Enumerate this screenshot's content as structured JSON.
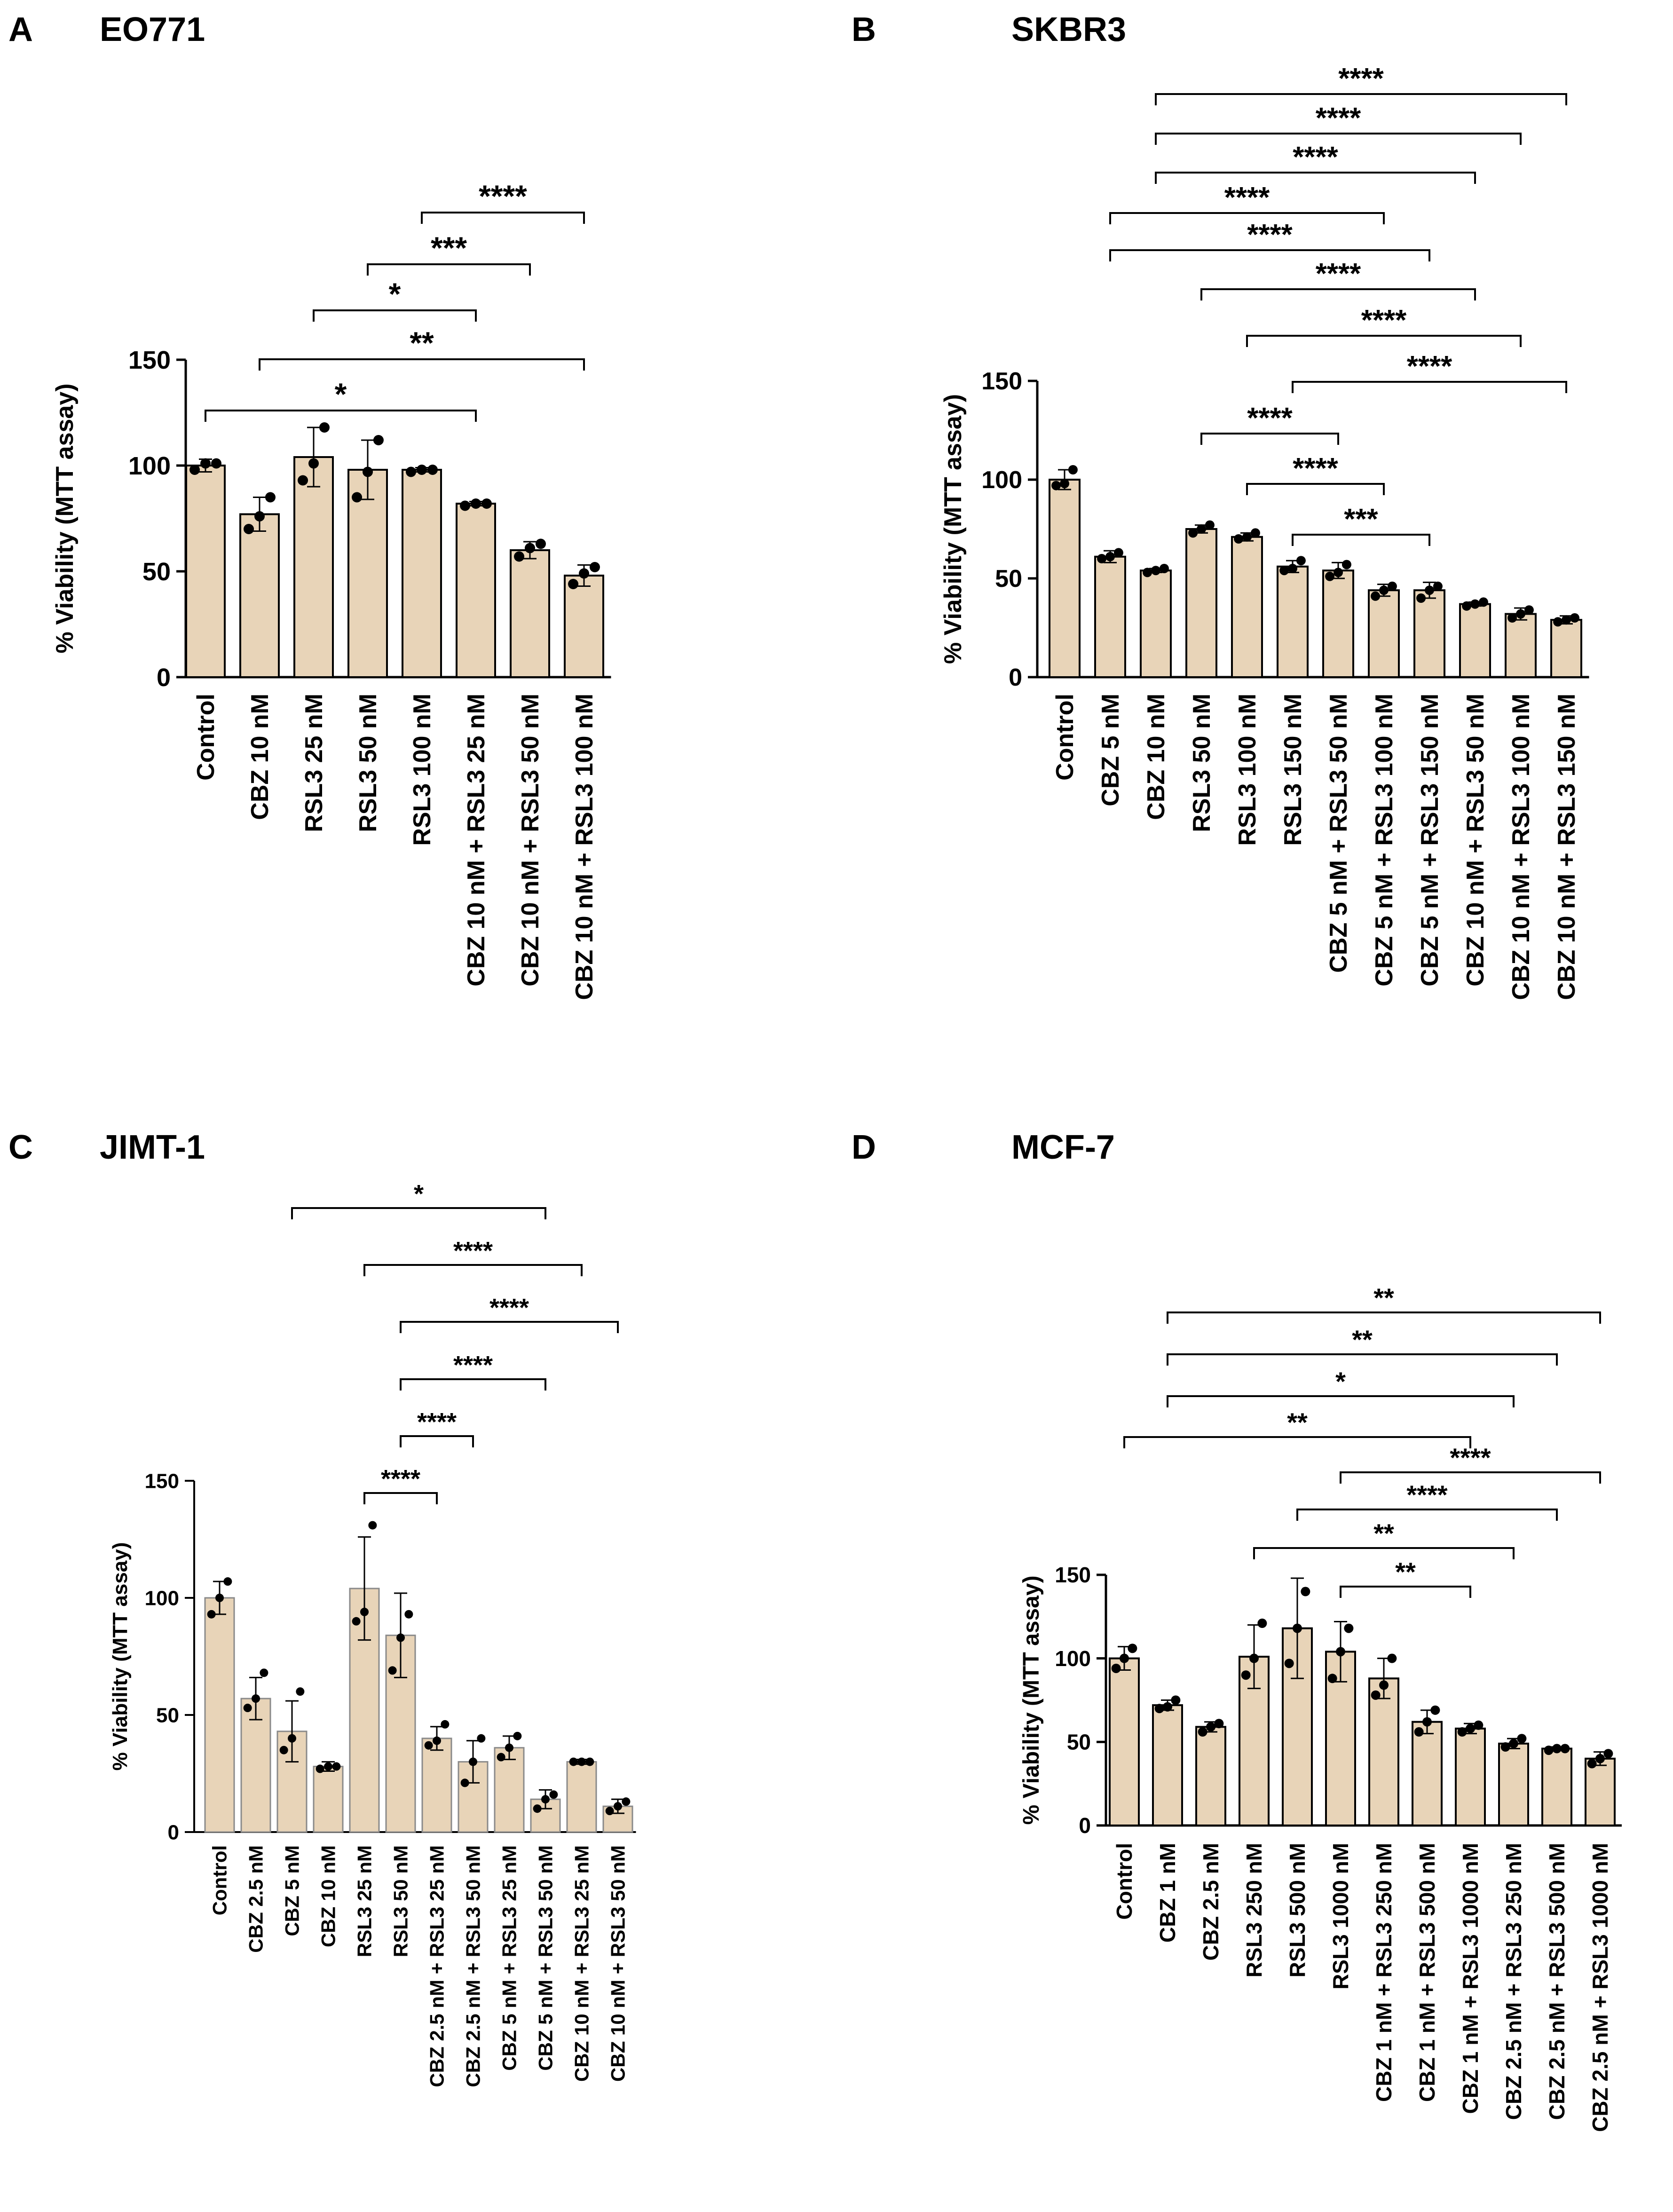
{
  "colors": {
    "bar": "#e8d4b8",
    "bar_outline": "#000000",
    "bar_outline_c": "#8a8a8a",
    "dot": "#000000"
  },
  "chart_data": [
    {
      "id": "A",
      "panel_label": "A",
      "title": "EO771",
      "type": "bar",
      "ylabel": "% Viability (MTT assay)",
      "ylim": [
        0,
        150
      ],
      "yticks": [
        0,
        50,
        100,
        150
      ],
      "categories": [
        "Control",
        "CBZ 10 nM",
        "RSL3 25 nM",
        "RSL3 50 nM",
        "RSL3 100 nM",
        "CBZ 10 nM + RSL3 25 nM",
        "CBZ 10 nM + RSL3 50 nM",
        "CBZ 10 nM + RSL3 100 nM"
      ],
      "values": [
        100,
        77,
        104,
        98,
        98,
        82,
        60,
        48
      ],
      "errors": [
        3,
        8,
        14,
        14,
        1,
        1,
        4,
        5
      ],
      "points": [
        [
          98,
          101,
          101
        ],
        [
          70,
          76,
          85
        ],
        [
          93,
          101,
          118
        ],
        [
          85,
          97,
          112
        ],
        [
          97,
          98,
          98
        ],
        [
          81,
          82,
          82
        ],
        [
          57,
          61,
          63
        ],
        [
          44,
          49,
          52
        ]
      ],
      "comparisons": [
        {
          "a": 0,
          "b": 5,
          "label": "*"
        },
        {
          "a": 1,
          "b": 7,
          "label": "**"
        },
        {
          "a": 2,
          "b": 5,
          "label": "*"
        },
        {
          "a": 3,
          "b": 6,
          "label": "***"
        },
        {
          "a": 4,
          "b": 7,
          "label": "****"
        }
      ]
    },
    {
      "id": "B",
      "panel_label": "B",
      "title": "SKBR3",
      "type": "bar",
      "ylabel": "% Viability (MTT assay)",
      "ylim": [
        0,
        150
      ],
      "yticks": [
        0,
        50,
        100,
        150
      ],
      "categories": [
        "Control",
        "CBZ 5 nM",
        "CBZ 10 nM",
        "RSL3 50 nM",
        "RSL3 100 nM",
        "RSL3 150 nM",
        "CBZ 5 nM + RSL3 50 nM",
        "CBZ 5 nM + RSL3 100 nM",
        "CBZ 5 nM + RSL3 150 nM",
        "CBZ 10 nM + RSL3 50 nM",
        "CBZ 10 nM + RSL3 100 nM",
        "CBZ 10 nM + RSL3 150 nM"
      ],
      "values": [
        100,
        61,
        54,
        75,
        71,
        56,
        54,
        44,
        44,
        37,
        32,
        29
      ],
      "errors": [
        5,
        3,
        1,
        2,
        2,
        3,
        4,
        3,
        4,
        1,
        3,
        2
      ],
      "points": [
        [
          97,
          98,
          105
        ],
        [
          60,
          61,
          63
        ],
        [
          53,
          54,
          55
        ],
        [
          73,
          75,
          77
        ],
        [
          70,
          71,
          73
        ],
        [
          54,
          55,
          59
        ],
        [
          51,
          53,
          57
        ],
        [
          41,
          44,
          46
        ],
        [
          40,
          44,
          46
        ],
        [
          36,
          37,
          38
        ],
        [
          30,
          32,
          34
        ],
        [
          28,
          29,
          30
        ]
      ],
      "comparisons": [
        {
          "a": 2,
          "b": 11,
          "label": "****"
        },
        {
          "a": 2,
          "b": 10,
          "label": "****"
        },
        {
          "a": 2,
          "b": 9,
          "label": "****"
        },
        {
          "a": 1,
          "b": 7,
          "label": "****"
        },
        {
          "a": 1,
          "b": 8,
          "label": "****"
        },
        {
          "a": 3,
          "b": 9,
          "label": "****"
        },
        {
          "a": 4,
          "b": 10,
          "label": "****"
        },
        {
          "a": 5,
          "b": 11,
          "label": "****"
        },
        {
          "a": 3,
          "b": 6,
          "label": "****"
        },
        {
          "a": 4,
          "b": 7,
          "label": "****"
        },
        {
          "a": 5,
          "b": 8,
          "label": "***"
        }
      ]
    },
    {
      "id": "C",
      "panel_label": "C",
      "title": "JIMT-1",
      "type": "bar",
      "ylabel": "% Viability (MTT assay)",
      "ylim": [
        0,
        150
      ],
      "yticks": [
        0,
        50,
        100,
        150
      ],
      "categories": [
        "Control",
        "CBZ 2.5 nM",
        "CBZ 5 nM",
        "CBZ 10 nM",
        "RSL3 25 nM",
        "RSL3 50 nM",
        "CBZ 2.5 nM + RSL3 25 nM",
        "CBZ 2.5 nM + RSL3 50 nM",
        "CBZ 5 nM + RSL3 25 nM",
        "CBZ 5 nM + RSL3 50 nM",
        "CBZ 10 nM + RSL3 25 nM",
        "CBZ 10 nM + RSL3 50 nM"
      ],
      "values": [
        100,
        57,
        43,
        28,
        104,
        84,
        40,
        30,
        36,
        14,
        30,
        11
      ],
      "errors": [
        7,
        9,
        13,
        2,
        22,
        18,
        5,
        9,
        5,
        4,
        1,
        3
      ],
      "points": [
        [
          93,
          100,
          107
        ],
        [
          53,
          57,
          68
        ],
        [
          35,
          40,
          60
        ],
        [
          27,
          28,
          28
        ],
        [
          90,
          94,
          131
        ],
        [
          69,
          83,
          93
        ],
        [
          37,
          39,
          46
        ],
        [
          21,
          30,
          40
        ],
        [
          32,
          36,
          41
        ],
        [
          10,
          14,
          16
        ],
        [
          30,
          30,
          30
        ],
        [
          9,
          11,
          13
        ]
      ],
      "comparisons": [
        {
          "a": 2,
          "b": 9,
          "label": "*"
        },
        {
          "a": 4,
          "b": 10,
          "label": "****"
        },
        {
          "a": 5,
          "b": 11,
          "label": "****"
        },
        {
          "a": 5,
          "b": 9,
          "label": "****"
        },
        {
          "a": 5,
          "b": 7,
          "label": "****"
        },
        {
          "a": 4,
          "b": 6,
          "label": "****"
        }
      ]
    },
    {
      "id": "D",
      "panel_label": "D",
      "title": "MCF-7",
      "type": "bar",
      "ylabel": "% Viability (MTT assay)",
      "ylim": [
        0,
        150
      ],
      "yticks": [
        0,
        50,
        100,
        150
      ],
      "categories": [
        "Control",
        "CBZ 1 nM",
        "CBZ 2.5 nM",
        "RSL3 250 nM",
        "RSL3 500 nM",
        "RSL3 1000 nM",
        "CBZ 1 nM + RSL3 250 nM",
        "CBZ 1 nM + RSL3 500 nM",
        "CBZ 1 nM + RSL3 1000 nM",
        "CBZ 2.5 nM + RSL3 250 nM",
        "CBZ 2.5 nM + RSL3 500 nM",
        "CBZ 2.5 nM + RSL3 1000 nM"
      ],
      "values": [
        100,
        72,
        59,
        101,
        118,
        104,
        88,
        62,
        58,
        49,
        46,
        40
      ],
      "errors": [
        7,
        3,
        3,
        19,
        30,
        18,
        12,
        7,
        3,
        3,
        1,
        4
      ],
      "points": [
        [
          94,
          100,
          106
        ],
        [
          70,
          71,
          75
        ],
        [
          56,
          59,
          61
        ],
        [
          90,
          100,
          121
        ],
        [
          97,
          118,
          140
        ],
        [
          88,
          104,
          118
        ],
        [
          78,
          84,
          100
        ],
        [
          56,
          62,
          69
        ],
        [
          56,
          58,
          60
        ],
        [
          47,
          49,
          52
        ],
        [
          45,
          46,
          46
        ],
        [
          37,
          40,
          43
        ]
      ],
      "comparisons": [
        {
          "a": 1,
          "b": 11,
          "label": "**"
        },
        {
          "a": 1,
          "b": 10,
          "label": "**"
        },
        {
          "a": 1,
          "b": 9,
          "label": "*"
        },
        {
          "a": 0,
          "b": 8,
          "label": "**"
        },
        {
          "a": 5,
          "b": 11,
          "label": "****"
        },
        {
          "a": 4,
          "b": 10,
          "label": "****"
        },
        {
          "a": 3,
          "b": 9,
          "label": "**"
        },
        {
          "a": 5,
          "b": 8,
          "label": "**"
        }
      ]
    }
  ]
}
